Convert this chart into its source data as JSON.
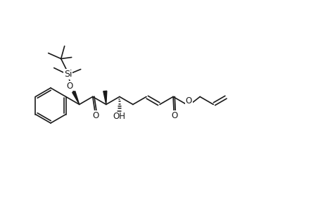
{
  "bg_color": "#ffffff",
  "line_color": "#1a1a1a",
  "line_width": 1.2,
  "font_size": 8.5,
  "fig_width": 4.6,
  "fig_height": 3.0,
  "dpi": 100,
  "xlim": [
    0,
    46
  ],
  "ylim": [
    0,
    30
  ]
}
